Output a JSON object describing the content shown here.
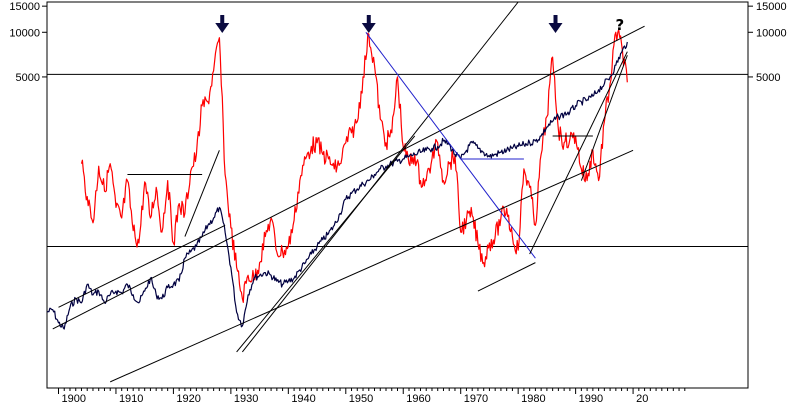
{
  "chart_data": {
    "type": "line",
    "title": "",
    "xlabel": "",
    "ylabel": "",
    "xlim": [
      1898,
      2020
    ],
    "ylim": [
      40,
      16000
    ],
    "y_scale": "log",
    "grid": false,
    "legend": "none",
    "x_ticks": [
      "1900",
      "1910",
      "1920",
      "1930",
      "1940",
      "1950",
      "1960",
      "1970",
      "1980",
      "1990",
      "20"
    ],
    "y_ticks": [
      {
        "value": 15000,
        "label": "15000"
      },
      {
        "value": 10000,
        "label": "10000"
      },
      {
        "value": 5000,
        "label": "5000"
      }
    ],
    "horizontal_reference_lines": [
      5200,
      360
    ],
    "annotations": [
      {
        "text": "↓",
        "x": 1928.5,
        "kind": "down-arrow"
      },
      {
        "text": "↓",
        "x": 1954,
        "kind": "down-arrow"
      },
      {
        "text": "↓",
        "x": 1986.5,
        "kind": "down-arrow"
      },
      {
        "text": "?",
        "x": 1997.7,
        "kind": "question-mark"
      }
    ],
    "colors": {
      "series_red": "#ff0000",
      "series_navy": "#000040",
      "trendline": "#000000",
      "blue_trendline": "#2222cc",
      "frame": "#000000"
    },
    "series": [
      {
        "color": "#ff0000",
        "x": [
          1904,
          1905,
          1906,
          1907,
          1908,
          1909,
          1910,
          1911,
          1912,
          1913,
          1914,
          1915,
          1916,
          1917,
          1918,
          1919,
          1920,
          1921,
          1922,
          1923,
          1924,
          1925,
          1926,
          1927,
          1928,
          1929,
          1930,
          1931,
          1932,
          1933,
          1934,
          1935,
          1936,
          1937,
          1938,
          1939,
          1940,
          1941,
          1942,
          1943,
          1944,
          1945,
          1946,
          1947,
          1948,
          1949,
          1950,
          1951,
          1952,
          1953,
          1954,
          1955,
          1956,
          1957,
          1958,
          1959,
          1960,
          1961,
          1962,
          1963,
          1964,
          1965,
          1966,
          1967,
          1968,
          1969,
          1970,
          1971,
          1972,
          1973,
          1974,
          1975,
          1976,
          1977,
          1978,
          1979,
          1980,
          1981,
          1982,
          1983,
          1984,
          1985,
          1986,
          1987,
          1988,
          1989,
          1990,
          1991,
          1992,
          1993,
          1994,
          1995,
          1996,
          1997,
          1998,
          1999
        ],
        "y": [
          1300,
          780,
          520,
          1250,
          850,
          1300,
          660,
          560,
          1000,
          460,
          380,
          980,
          560,
          900,
          450,
          1000,
          380,
          700,
          600,
          1150,
          1500,
          3200,
          3400,
          5500,
          9200,
          1100,
          480,
          260,
          160,
          230,
          220,
          280,
          420,
          560,
          330,
          330,
          360,
          540,
          1000,
          1400,
          1700,
          1800,
          1500,
          1400,
          1200,
          1300,
          1800,
          2100,
          2500,
          5000,
          9700,
          6000,
          2600,
          1800,
          2100,
          5000,
          1700,
          1300,
          1500,
          1000,
          1000,
          1400,
          1800,
          1000,
          1300,
          1500,
          450,
          550,
          580,
          380,
          280,
          380,
          420,
          560,
          650,
          420,
          340,
          1200,
          900,
          500,
          1500,
          2700,
          6800,
          2200,
          1800,
          1900,
          2000,
          1200,
          1000,
          1600,
          1000,
          2500,
          4500,
          10000,
          8300,
          4600
        ]
      },
      {
        "color": "#000040",
        "x": [
          1898,
          1899,
          1900,
          1901,
          1902,
          1903,
          1904,
          1905,
          1906,
          1907,
          1908,
          1909,
          1910,
          1911,
          1912,
          1913,
          1914,
          1915,
          1916,
          1917,
          1918,
          1919,
          1920,
          1921,
          1922,
          1923,
          1924,
          1925,
          1926,
          1927,
          1928,
          1929,
          1930,
          1931,
          1932,
          1933,
          1934,
          1935,
          1936,
          1937,
          1938,
          1939,
          1940,
          1941,
          1942,
          1943,
          1944,
          1945,
          1946,
          1947,
          1948,
          1949,
          1950,
          1951,
          1952,
          1953,
          1954,
          1955,
          1956,
          1957,
          1958,
          1959,
          1960,
          1961,
          1962,
          1963,
          1964,
          1965,
          1966,
          1967,
          1968,
          1969,
          1970,
          1971,
          1972,
          1973,
          1974,
          1975,
          1976,
          1977,
          1978,
          1979,
          1980,
          1981,
          1982,
          1983,
          1984,
          1985,
          1986,
          1987,
          1988,
          1989,
          1990,
          1991,
          1992,
          1993,
          1994,
          1995,
          1996,
          1997,
          1998,
          1999
        ],
        "y": [
          130,
          135,
          110,
          100,
          140,
          160,
          150,
          200,
          170,
          180,
          150,
          170,
          180,
          175,
          200,
          170,
          150,
          180,
          220,
          170,
          160,
          190,
          200,
          210,
          300,
          330,
          360,
          420,
          500,
          560,
          660,
          450,
          260,
          130,
          105,
          170,
          220,
          230,
          240,
          230,
          210,
          200,
          210,
          220,
          250,
          280,
          320,
          360,
          400,
          440,
          500,
          600,
          750,
          820,
          880,
          950,
          1000,
          1100,
          1200,
          1250,
          1300,
          1350,
          1400,
          1450,
          1500,
          1550,
          1600,
          1650,
          1700,
          1850,
          1750,
          1500,
          1400,
          1600,
          1800,
          1650,
          1550,
          1450,
          1500,
          1550,
          1600,
          1650,
          1700,
          1750,
          1800,
          1850,
          2000,
          2300,
          2500,
          2700,
          2800,
          2900,
          3200,
          3400,
          3500,
          3700,
          4100,
          4500,
          5000,
          6000,
          7300,
          8600
        ]
      }
    ]
  }
}
